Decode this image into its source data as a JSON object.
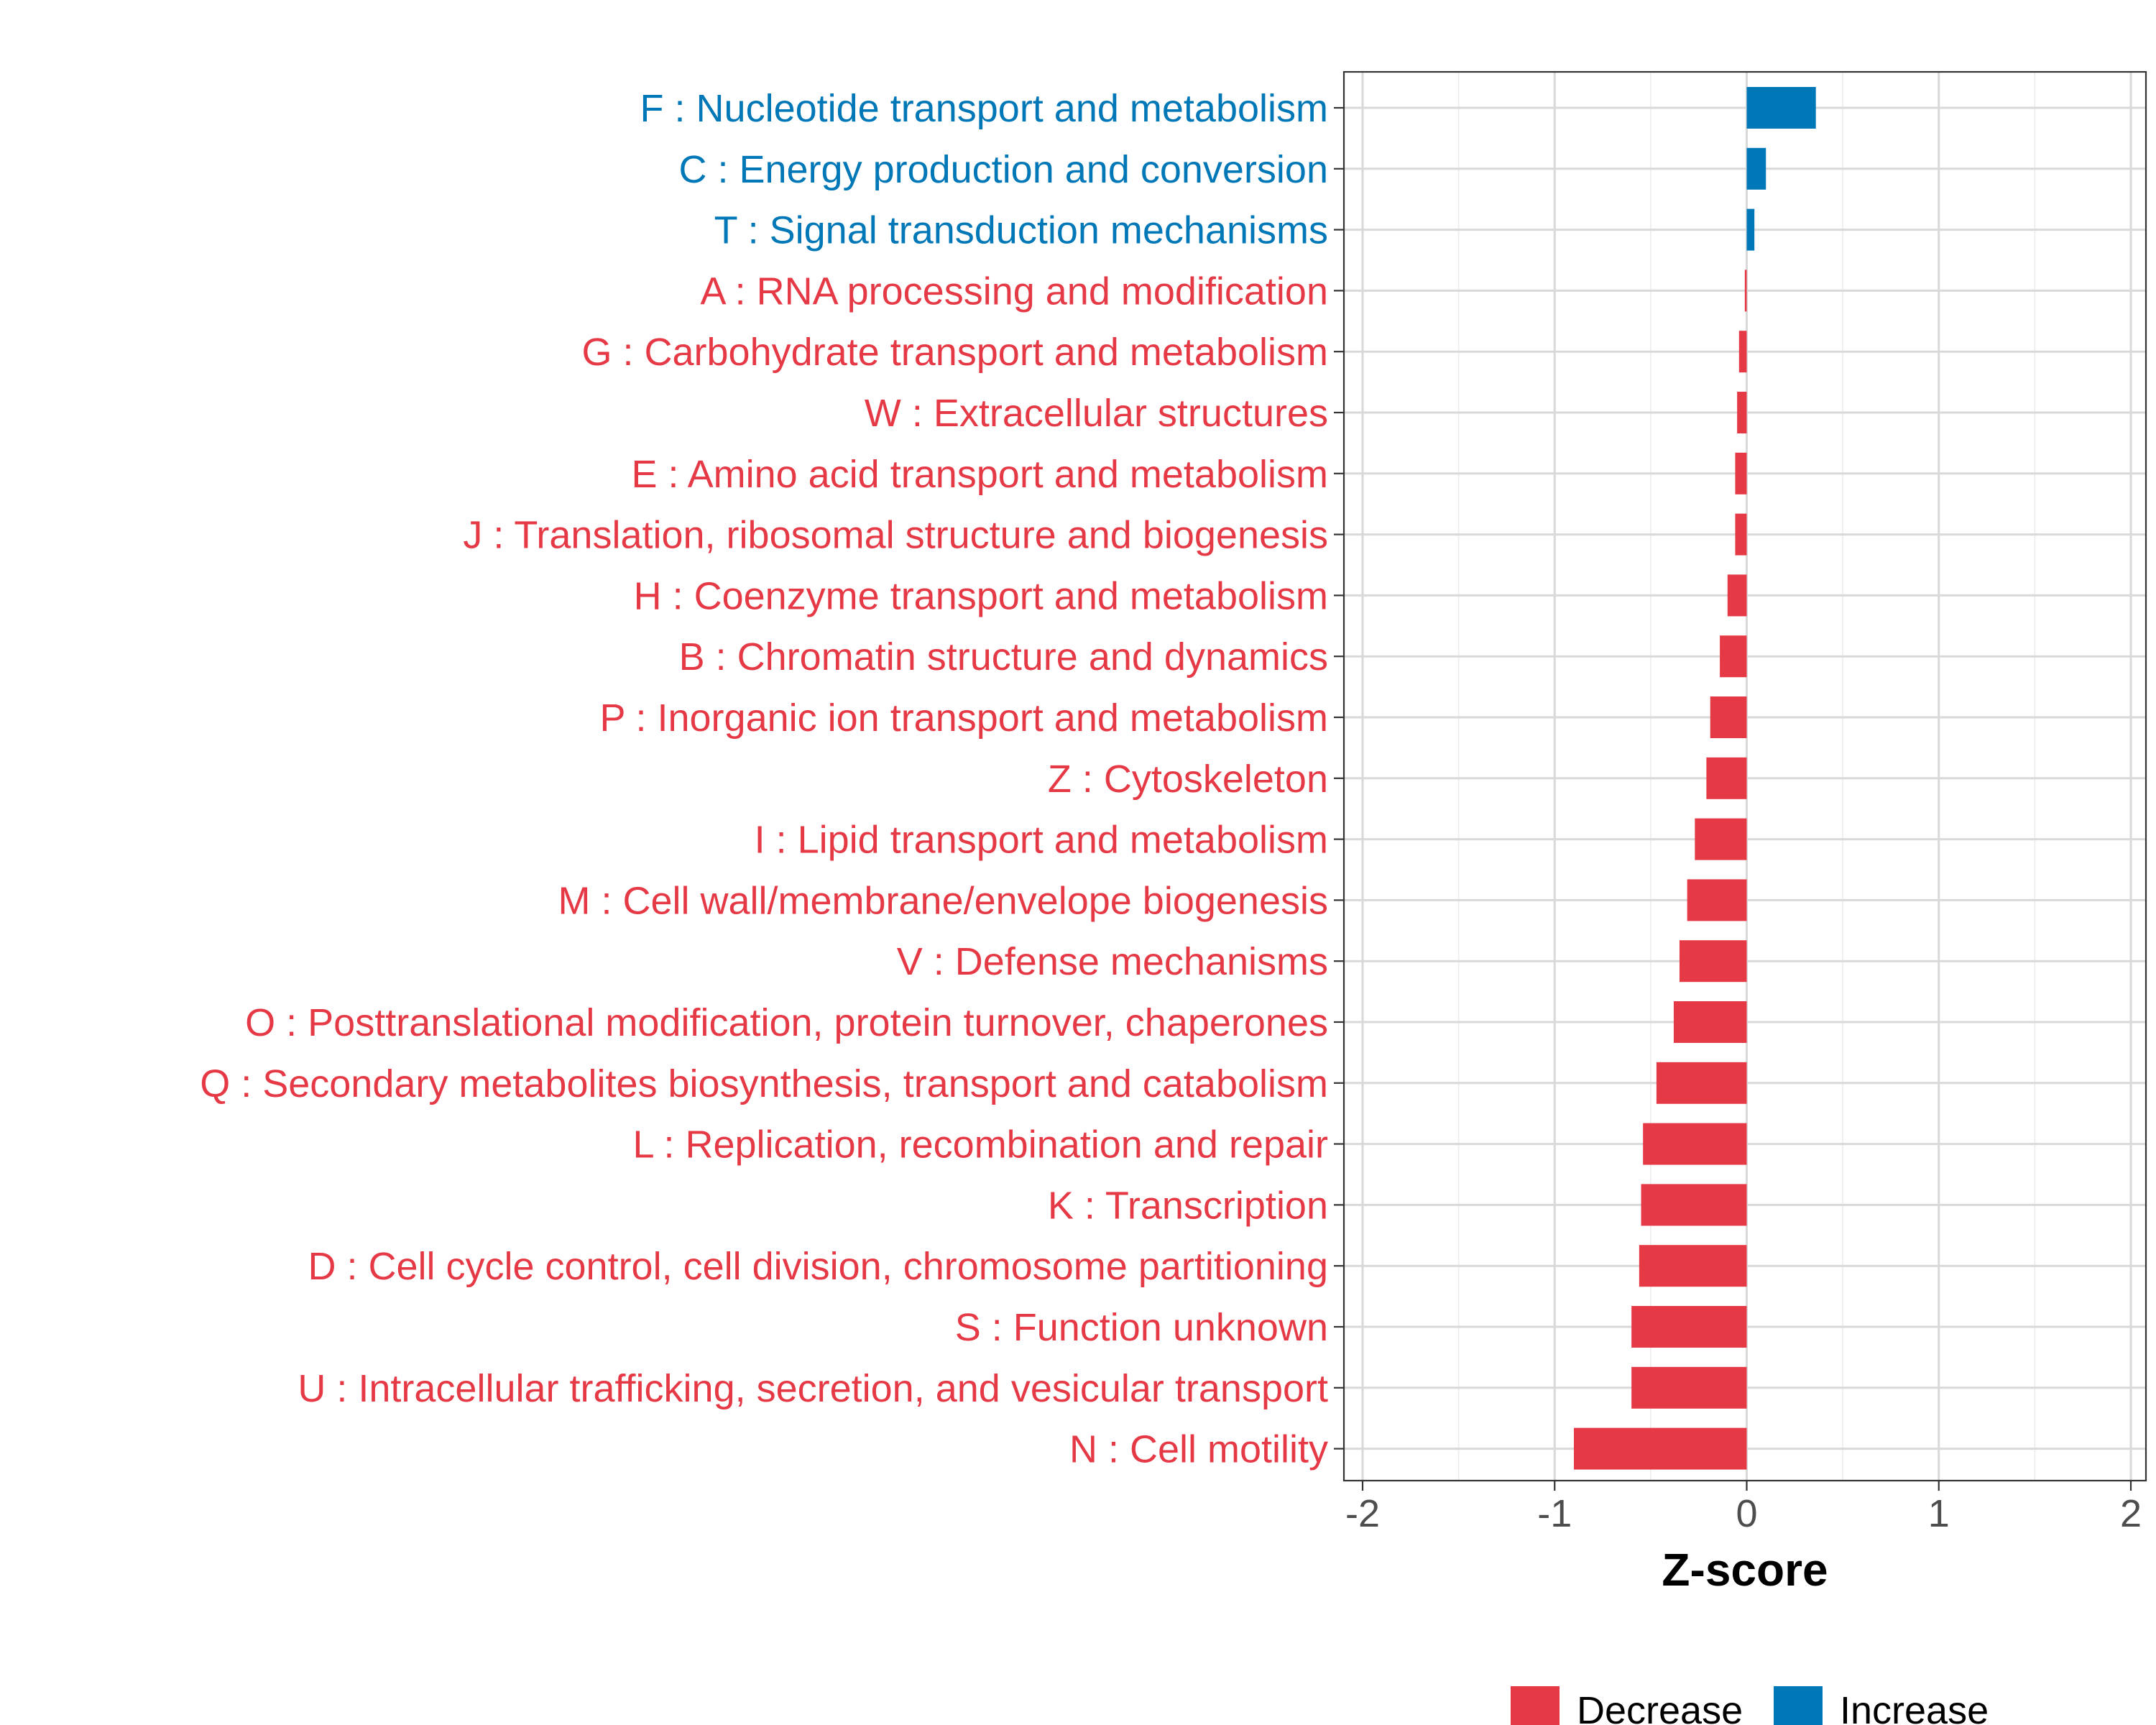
{
  "chart_data": {
    "type": "bar",
    "orientation": "horizontal",
    "title": "",
    "xlabel": "Z-score",
    "ylabel": "",
    "xlim": [
      -2.0,
      2.0
    ],
    "x_ticks": [
      -2,
      -1,
      0,
      1,
      2
    ],
    "x_tick_labels": [
      "-2",
      "-1",
      "0",
      "1",
      "2"
    ],
    "grid": true,
    "legend_position": "bottom",
    "legend": [
      {
        "name": "Decrease",
        "color": "#E63946"
      },
      {
        "name": "Increase",
        "color": "#0077B6"
      }
    ],
    "colors": {
      "Decrease": "#E63946",
      "Increase": "#0077B6"
    },
    "categories": [
      "F : Nucleotide transport and metabolism",
      "C : Energy production and conversion",
      "T : Signal transduction mechanisms",
      "A : RNA processing and modification",
      "G : Carbohydrate transport and metabolism",
      "W : Extracellular structures",
      "E : Amino acid transport and metabolism",
      "J : Translation, ribosomal structure and biogenesis",
      "H : Coenzyme transport and metabolism",
      "B : Chromatin structure and dynamics",
      "P : Inorganic ion transport and metabolism",
      "Z : Cytoskeleton",
      "I : Lipid transport and metabolism",
      "M : Cell wall/membrane/envelope biogenesis",
      "V : Defense mechanisms",
      "O : Posttranslational modification, protein turnover, chaperones",
      "Q : Secondary metabolites biosynthesis, transport and catabolism",
      "L : Replication, recombination and repair",
      "K : Transcription",
      "D : Cell cycle control, cell division, chromosome partitioning",
      "S : Function unknown",
      "U : Intracellular trafficking, secretion, and vesicular transport",
      "N : Cell motility"
    ],
    "values": [
      0.36,
      0.1,
      0.04,
      -0.01,
      -0.04,
      -0.05,
      -0.06,
      -0.06,
      -0.1,
      -0.14,
      -0.19,
      -0.21,
      -0.27,
      -0.31,
      -0.35,
      -0.38,
      -0.47,
      -0.54,
      -0.55,
      -0.56,
      -0.6,
      -0.6,
      -0.9
    ],
    "groups": [
      "Increase",
      "Increase",
      "Increase",
      "Decrease",
      "Decrease",
      "Decrease",
      "Decrease",
      "Decrease",
      "Decrease",
      "Decrease",
      "Decrease",
      "Decrease",
      "Decrease",
      "Decrease",
      "Decrease",
      "Decrease",
      "Decrease",
      "Decrease",
      "Decrease",
      "Decrease",
      "Decrease",
      "Decrease",
      "Decrease"
    ]
  }
}
